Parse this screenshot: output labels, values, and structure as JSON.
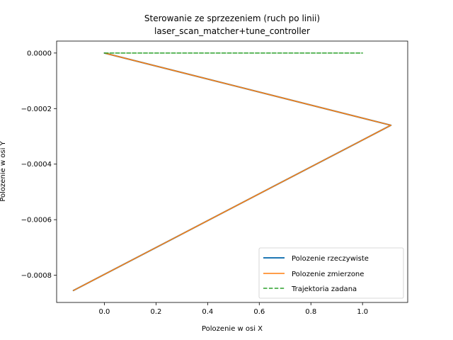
{
  "chart_data": {
    "type": "line",
    "title_line1": "Sterowanie ze sprzezeniem (ruch po linii)",
    "title_line2": "laser_scan_matcher+tune_controller",
    "xlabel": "Polozenie w osi X",
    "ylabel": "Polozenie w osi Y",
    "xlim": [
      -0.185,
      1.175
    ],
    "ylim": [
      -0.000898,
      4.3e-05
    ],
    "xticks": [
      0.0,
      0.2,
      0.4,
      0.6,
      0.8,
      1.0
    ],
    "xtick_labels": [
      "0.0",
      "0.2",
      "0.4",
      "0.6",
      "0.8",
      "1.0"
    ],
    "yticks": [
      0.0,
      -0.0002,
      -0.0004,
      -0.0006,
      -0.0008
    ],
    "ytick_labels": [
      "0.0000",
      "−0.0002",
      "−0.0004",
      "−0.0006",
      "−0.0008"
    ],
    "legend_position": "lower-right",
    "grid": false,
    "series": [
      {
        "name": "Polozenie rzeczywiste",
        "color": "#1f77b4",
        "style": "solid",
        "x": [
          0.0,
          1.11,
          -0.12
        ],
        "y": [
          0.0,
          -0.00026,
          -0.000855
        ]
      },
      {
        "name": "Polozenie zmierzone",
        "color": "#ff7f0e",
        "style": "solid",
        "x": [
          0.0,
          1.11,
          -0.12
        ],
        "y": [
          0.0,
          -0.00026,
          -0.000855
        ]
      },
      {
        "name": "Trajektoria zadana",
        "color": "#2ca02c",
        "style": "dashed",
        "x": [
          0.0,
          1.0
        ],
        "y": [
          0.0,
          0.0
        ]
      }
    ]
  }
}
